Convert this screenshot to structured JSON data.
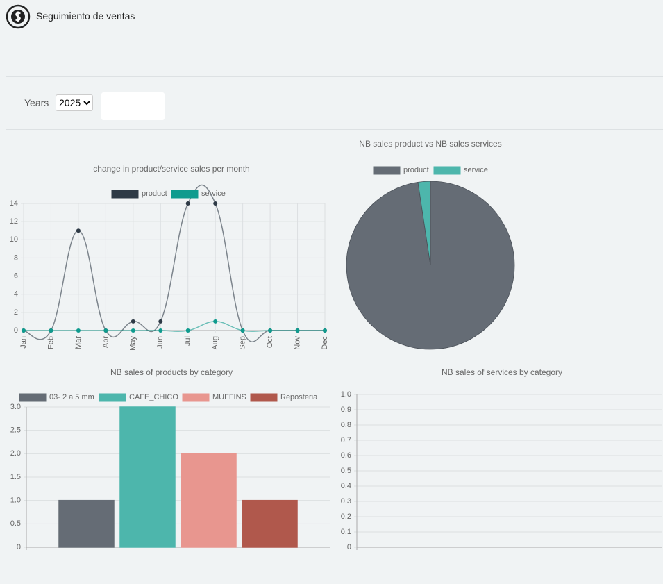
{
  "header": {
    "title": "Seguimiento de ventas"
  },
  "filters": {
    "years_label": "Years",
    "year": "2025"
  },
  "chart_data": [
    {
      "type": "line",
      "title": "change in product/service sales per month",
      "categories": [
        "Jan",
        "Feb",
        "Mar",
        "Apr",
        "May",
        "Jun",
        "Jul",
        "Aug",
        "Sep",
        "Oct",
        "Nov",
        "Dec"
      ],
      "series": [
        {
          "name": "product",
          "color": "#2e3a46",
          "values": [
            0,
            0,
            11,
            0,
            1,
            1,
            14,
            14,
            0,
            0,
            0,
            0
          ]
        },
        {
          "name": "service",
          "color": "#0f9b8e",
          "values": [
            0,
            0,
            0,
            0,
            0,
            0,
            0,
            1,
            0,
            0,
            0,
            0
          ]
        }
      ],
      "ylim": [
        0,
        14
      ],
      "yticks": [
        0,
        2,
        4,
        6,
        8,
        10,
        12,
        14
      ],
      "grid": true
    },
    {
      "type": "pie",
      "title": "NB sales product vs NB sales services",
      "categories": [
        "product",
        "service"
      ],
      "values": [
        41,
        1
      ],
      "colors": [
        "#656c75",
        "#4db6ac"
      ]
    },
    {
      "type": "bar",
      "title": "NB sales of products by category",
      "categories": [
        "03- 2 a 5 mm",
        "CAFE_CHICO",
        "MUFFINS",
        "Reposteria"
      ],
      "values": [
        1,
        3,
        2,
        1
      ],
      "colors": [
        "#656c75",
        "#4db6ac",
        "#e8968f",
        "#b0584c"
      ],
      "ylim": [
        0,
        3
      ],
      "yticks": [
        0,
        0.5,
        {
          "value": 1,
          "label": "1.0"
        },
        1.5,
        {
          "value": 2,
          "label": "2.0"
        },
        2.5,
        {
          "value": 3,
          "label": "3.0"
        }
      ],
      "grid": true
    },
    {
      "type": "bar",
      "title": "NB sales of services by category",
      "categories": [],
      "values": [],
      "colors": [],
      "ylim": [
        0,
        1
      ],
      "yticks": [
        0,
        0.1,
        0.2,
        0.3,
        0.4,
        0.5,
        0.6,
        0.7,
        0.8,
        0.9,
        {
          "value": 1,
          "label": "1.0"
        }
      ],
      "grid": true
    }
  ]
}
